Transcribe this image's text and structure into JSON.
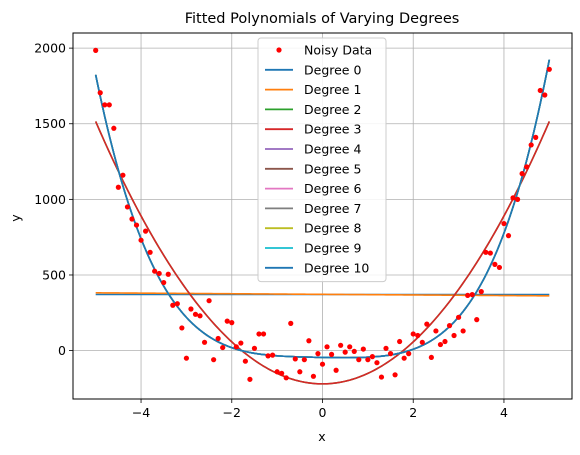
{
  "chart_data": {
    "type": "scatter",
    "title": "Fitted Polynomials of Varying Degrees",
    "xlabel": "x",
    "ylabel": "y",
    "xlim": [
      -5.5,
      5.5
    ],
    "ylim": [
      -320,
      2100
    ],
    "xticks": [
      -4,
      -2,
      0,
      2,
      4
    ],
    "yticks": [
      0,
      500,
      1000,
      1500,
      2000
    ],
    "grid": true,
    "legend_position": "top-center",
    "scatter": {
      "name": "Noisy Data",
      "color": "#ff0000",
      "points": [
        [
          -5.0,
          1985
        ],
        [
          -4.9,
          1705
        ],
        [
          -4.8,
          1625
        ],
        [
          -4.7,
          1625
        ],
        [
          -4.6,
          1470
        ],
        [
          -4.5,
          1080
        ],
        [
          -4.4,
          1160
        ],
        [
          -4.3,
          950
        ],
        [
          -4.2,
          870
        ],
        [
          -4.1,
          830
        ],
        [
          -4.0,
          730
        ],
        [
          -3.9,
          790
        ],
        [
          -3.8,
          650
        ],
        [
          -3.7,
          525
        ],
        [
          -3.6,
          510
        ],
        [
          -3.5,
          450
        ],
        [
          -3.4,
          505
        ],
        [
          -3.3,
          300
        ],
        [
          -3.2,
          310
        ],
        [
          -3.1,
          150
        ],
        [
          -3.0,
          -50
        ],
        [
          -2.9,
          275
        ],
        [
          -2.8,
          240
        ],
        [
          -2.7,
          230
        ],
        [
          -2.6,
          55
        ],
        [
          -2.5,
          330
        ],
        [
          -2.4,
          -60
        ],
        [
          -2.3,
          80
        ],
        [
          -2.2,
          20
        ],
        [
          -2.1,
          195
        ],
        [
          -2.0,
          185
        ],
        [
          -1.9,
          25
        ],
        [
          -1.8,
          50
        ],
        [
          -1.7,
          -70
        ],
        [
          -1.6,
          -190
        ],
        [
          -1.5,
          15
        ],
        [
          -1.4,
          110
        ],
        [
          -1.3,
          110
        ],
        [
          -1.2,
          -35
        ],
        [
          -1.1,
          -30
        ],
        [
          -1.0,
          -140
        ],
        [
          -0.9,
          -150
        ],
        [
          -0.8,
          -180
        ],
        [
          -0.7,
          180
        ],
        [
          -0.6,
          -55
        ],
        [
          -0.5,
          -140
        ],
        [
          -0.4,
          -60
        ],
        [
          -0.3,
          65
        ],
        [
          -0.2,
          -170
        ],
        [
          -0.1,
          -20
        ],
        [
          0.0,
          -90
        ],
        [
          0.1,
          25
        ],
        [
          0.2,
          -25
        ],
        [
          0.3,
          -130
        ],
        [
          0.4,
          35
        ],
        [
          0.5,
          -10
        ],
        [
          0.6,
          25
        ],
        [
          0.7,
          -5
        ],
        [
          0.8,
          -60
        ],
        [
          0.9,
          10
        ],
        [
          1.0,
          -60
        ],
        [
          1.1,
          -40
        ],
        [
          1.2,
          -80
        ],
        [
          1.3,
          -175
        ],
        [
          1.4,
          15
        ],
        [
          1.5,
          -20
        ],
        [
          1.6,
          -160
        ],
        [
          1.7,
          60
        ],
        [
          1.8,
          -50
        ],
        [
          1.9,
          -20
        ],
        [
          2.0,
          110
        ],
        [
          2.1,
          100
        ],
        [
          2.2,
          55
        ],
        [
          2.3,
          175
        ],
        [
          2.4,
          -45
        ],
        [
          2.5,
          130
        ],
        [
          2.6,
          40
        ],
        [
          2.7,
          60
        ],
        [
          2.8,
          165
        ],
        [
          2.9,
          100
        ],
        [
          3.0,
          220
        ],
        [
          3.1,
          130
        ],
        [
          3.2,
          365
        ],
        [
          3.3,
          370
        ],
        [
          3.4,
          205
        ],
        [
          3.5,
          390
        ],
        [
          3.6,
          650
        ],
        [
          3.7,
          645
        ],
        [
          3.8,
          570
        ],
        [
          3.9,
          550
        ],
        [
          4.0,
          840
        ],
        [
          4.1,
          760
        ],
        [
          4.2,
          1010
        ],
        [
          4.3,
          1000
        ],
        [
          4.4,
          1170
        ],
        [
          4.5,
          1215
        ],
        [
          4.6,
          1360
        ],
        [
          4.7,
          1410
        ],
        [
          4.8,
          1720
        ],
        [
          4.9,
          1690
        ],
        [
          5.0,
          1860
        ]
      ]
    },
    "series": [
      {
        "name": "Degree 0",
        "color": "#1f77b4",
        "coefficients": [
          371
        ]
      },
      {
        "name": "Degree 1",
        "color": "#ff7f0e",
        "coefficients": [
          372,
          -2
        ]
      },
      {
        "name": "Degree 2",
        "color": "#2ca02c",
        "coefficients": [
          -220,
          0,
          69.4
        ]
      },
      {
        "name": "Degree 3",
        "color": "#d62728",
        "coefficients": [
          -220,
          0,
          69.4
        ]
      },
      {
        "name": "Degree 4",
        "color": "#9467bd",
        "coefficients": [
          -45,
          -5,
          3,
          0.6,
          2.95
        ]
      },
      {
        "name": "Degree 5",
        "color": "#8c564b",
        "coefficients": [
          -45,
          -5,
          3,
          0.6,
          2.95
        ]
      },
      {
        "name": "Degree 6",
        "color": "#e377c2",
        "coefficients": [
          -45,
          -5,
          3,
          0.6,
          2.95
        ]
      },
      {
        "name": "Degree 7",
        "color": "#7f7f7f",
        "coefficients": [
          -45,
          -5,
          3,
          0.6,
          2.95
        ]
      },
      {
        "name": "Degree 8",
        "color": "#bcbd22",
        "coefficients": [
          -45,
          -5,
          3,
          0.6,
          2.95
        ]
      },
      {
        "name": "Degree 9",
        "color": "#17becf",
        "coefficients": [
          -45,
          -5,
          3,
          0.6,
          2.95
        ]
      },
      {
        "name": "Degree 10",
        "color": "#1f77b4",
        "coefficients": [
          -45,
          -5,
          3,
          0.6,
          2.95
        ]
      }
    ]
  }
}
